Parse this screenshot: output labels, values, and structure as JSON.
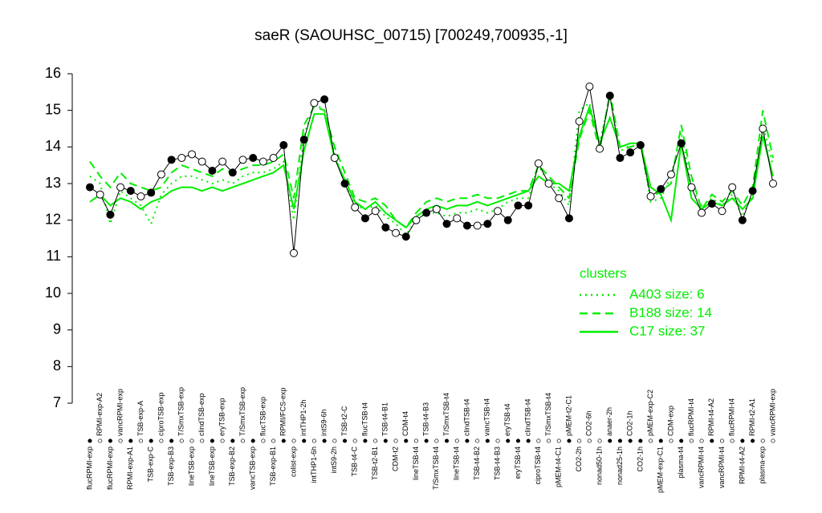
{
  "chart_data": {
    "type": "line",
    "title": "saeR (SAOUHSC_00715) [700249,700935,-1]",
    "categories": [
      "flucRPMI-exp",
      "RPMI-exp-A2",
      "flucRPMI-exp",
      "vancRPMI-exp",
      "RPMI-exp-A1",
      "TSB-exp-A",
      "TSB-exp-C",
      "ciproTSB-exp",
      "TSB-exp-B3",
      "T/SmxTSB-exp",
      "lineTSB-exp",
      "clindTSB-exp",
      "lineTSB-exp",
      "eryTSB-exp",
      "TSB-exp-B2",
      "T/SmxTSB-exp",
      "vancTSB-exp",
      "flucTSB-exp",
      "TSB-exp-B1",
      "RPMI/FCS-exp",
      "colist-exp",
      "intTHP1-2h",
      "intTHP1-6h",
      "intS9-6h",
      "intS9-2h",
      "TSB-t2-C",
      "TSB-t4-C",
      "flucTSB-t4",
      "TSB-t2-B1",
      "TSB-t4-B1",
      "CDM-t2",
      "CDM-t4",
      "lineTSB-t4",
      "TSB-t4-B3",
      "T/SmxTSB-t4",
      "T/SmxTSB-t4",
      "lineTSB-t4",
      "clindTSB-t4",
      "TSB-t4-B2",
      "vancTSB-t4",
      "TSB-t4-B3",
      "eryTSB-t4",
      "eryTSB-t4",
      "clindTSB-t4",
      "ciproTSB-t4",
      "T/SmxTSB-t4",
      "pMEM-t4-C1",
      "pMEM-t2-C1",
      "CO2-2h",
      "CO2-6h",
      "nonad50-1h",
      "anaer-2h",
      "nonad25-1h",
      "CO2-1h",
      "CO2-1h",
      "pMEM-exp-C2",
      "pMEM-exp-C1",
      "CDM-exp",
      "plasma-t4",
      "flucRPMI-t4",
      "vancRPMI-t4",
      "RPMI-t4-A2",
      "vancRPMI-t4",
      "flucRPMI-t4",
      "RPMI-t4-A2",
      "RPMI-t2-A1",
      "plasma-exp",
      "vancRPMI-exp"
    ],
    "values": [
      12.9,
      12.7,
      12.15,
      12.9,
      12.8,
      12.65,
      12.75,
      13.25,
      13.65,
      13.7,
      13.8,
      13.6,
      13.35,
      13.6,
      13.3,
      13.65,
      13.7,
      13.6,
      13.7,
      14.05,
      11.1,
      14.2,
      15.2,
      15.3,
      13.7,
      13.0,
      12.35,
      12.05,
      12.25,
      11.8,
      11.65,
      11.55,
      12.0,
      12.2,
      12.3,
      11.9,
      12.05,
      11.85,
      11.85,
      11.9,
      12.25,
      12.0,
      12.4,
      12.4,
      13.55,
      13.0,
      12.6,
      12.05,
      14.7,
      15.65,
      13.95,
      15.4,
      13.7,
      13.85,
      14.05,
      12.65,
      12.85,
      13.25,
      14.1,
      12.9,
      12.2,
      12.45,
      12.25,
      12.9,
      12.0,
      12.8,
      14.5,
      13.0
    ],
    "marker_colors": [
      "black",
      "white",
      "black",
      "white",
      "black",
      "white",
      "black",
      "white",
      "black",
      "white",
      "white",
      "white",
      "black",
      "white",
      "black",
      "white",
      "black",
      "white",
      "white",
      "black",
      "white",
      "black",
      "white",
      "black",
      "white",
      "black",
      "white",
      "black",
      "white",
      "black",
      "white",
      "black",
      "white",
      "black",
      "white",
      "black",
      "white",
      "black",
      "white",
      "black",
      "white",
      "black",
      "black",
      "black",
      "white",
      "white",
      "white",
      "black",
      "white",
      "white",
      "white",
      "black",
      "black",
      "black",
      "black",
      "white",
      "black",
      "white",
      "black",
      "white",
      "white",
      "black",
      "white",
      "white",
      "black",
      "black",
      "white",
      "white"
    ],
    "line_color": "black",
    "legend_title": "clusters",
    "series": [
      {
        "name": "A403 size: 6",
        "color": "#00ee00",
        "dash": "dotted",
        "values": [
          13.2,
          13.0,
          11.9,
          12.8,
          12.6,
          12.4,
          11.9,
          12.7,
          13.0,
          13.2,
          13.2,
          13.1,
          13.0,
          13.1,
          13.0,
          13.2,
          13.3,
          13.3,
          13.4,
          13.6,
          12.0,
          14.3,
          15.2,
          15.0,
          13.8,
          13.0,
          12.4,
          12.3,
          12.4,
          12.1,
          11.9,
          11.6,
          12.0,
          12.2,
          12.2,
          12.1,
          12.2,
          12.2,
          12.3,
          12.2,
          12.3,
          12.5,
          12.6,
          12.6,
          13.5,
          13.0,
          12.8,
          12.4,
          15.0,
          15.2,
          14.1,
          15.4,
          13.9,
          14.0,
          14.1,
          12.5,
          12.6,
          13.2,
          14.4,
          12.9,
          12.4,
          12.6,
          12.4,
          12.7,
          12.1,
          12.7,
          14.6,
          13.5
        ]
      },
      {
        "name": "B188 size: 14",
        "color": "#00ee00",
        "dash": "dashed",
        "values": [
          13.6,
          13.2,
          12.9,
          13.3,
          13.0,
          12.9,
          12.8,
          12.9,
          13.3,
          13.5,
          13.4,
          13.3,
          13.2,
          13.4,
          13.3,
          13.4,
          13.5,
          13.5,
          13.6,
          13.8,
          12.6,
          14.6,
          15.1,
          15.0,
          14.0,
          13.3,
          12.6,
          12.5,
          12.6,
          12.4,
          12.0,
          11.8,
          12.2,
          12.5,
          12.6,
          12.5,
          12.6,
          12.6,
          12.7,
          12.6,
          12.6,
          12.7,
          12.8,
          12.8,
          13.5,
          13.2,
          12.9,
          12.6,
          14.2,
          15.0,
          13.9,
          15.5,
          14.0,
          14.0,
          14.1,
          12.6,
          12.8,
          13.0,
          14.6,
          13.2,
          12.3,
          12.7,
          12.5,
          12.8,
          12.4,
          12.9,
          15.0,
          13.7
        ]
      },
      {
        "name": "C17 size: 37",
        "color": "#00ee00",
        "dash": "solid",
        "values": [
          12.5,
          12.7,
          12.4,
          12.6,
          12.5,
          12.3,
          12.5,
          12.6,
          12.8,
          12.9,
          12.9,
          12.8,
          12.9,
          12.8,
          12.9,
          13.0,
          13.1,
          13.2,
          13.3,
          13.5,
          12.3,
          13.9,
          14.9,
          14.9,
          13.7,
          13.1,
          12.5,
          12.3,
          12.5,
          12.2,
          12.0,
          11.8,
          12.1,
          12.3,
          12.4,
          12.3,
          12.4,
          12.4,
          12.5,
          12.4,
          12.5,
          12.6,
          12.7,
          12.8,
          13.2,
          13.0,
          13.0,
          12.8,
          14.3,
          15.1,
          14.1,
          14.8,
          14.0,
          14.1,
          14.1,
          12.9,
          12.7,
          12.0,
          14.1,
          12.6,
          12.3,
          12.5,
          12.4,
          12.6,
          12.3,
          12.6,
          14.3,
          13.2
        ]
      }
    ],
    "ylim": [
      7,
      16
    ],
    "yticks": [
      7,
      8,
      9,
      10,
      11,
      12,
      13,
      14,
      15,
      16
    ]
  }
}
